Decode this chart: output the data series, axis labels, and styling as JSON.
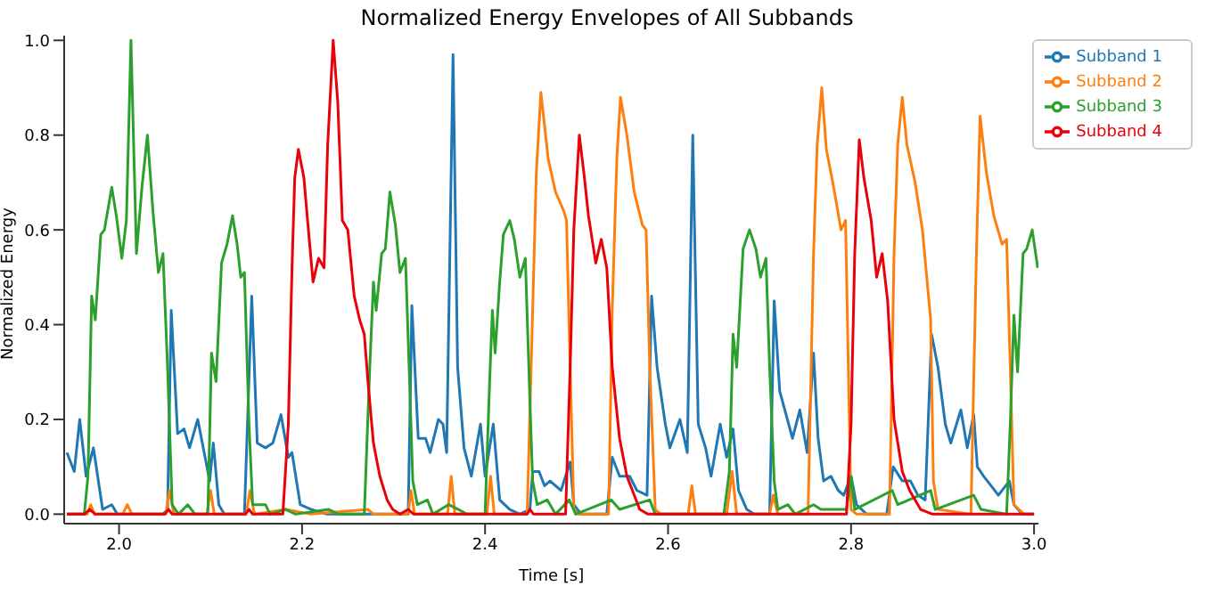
{
  "chart_data": {
    "type": "line",
    "title": "Normalized Energy Envelopes of All Subbands",
    "xlabel": "Time [s]",
    "ylabel": "Normalized Energy",
    "xlim": [
      1.94,
      3.005
    ],
    "ylim": [
      -0.02,
      1.01
    ],
    "xticks": [
      {
        "value": 2,
        "label": "2.0"
      },
      2.2,
      2.4,
      2.6,
      2.8,
      {
        "value": 3,
        "label": "3.0"
      }
    ],
    "yticks": [
      {
        "value": 0,
        "label": "0.0"
      },
      0.2,
      0.4,
      0.6,
      0.8,
      {
        "value": 1,
        "label": "1.0"
      }
    ],
    "grid": false,
    "legend": "top right",
    "marker": "none",
    "line_style": "solid",
    "series": [
      {
        "name": "Subband 1",
        "color": "#1f77b4",
        "x": [
          1.943,
          1.951,
          1.957,
          1.964,
          1.972,
          1.982,
          1.992,
          1.998,
          2.048,
          2.053,
          2.057,
          2.064,
          2.071,
          2.077,
          2.086,
          2.094,
          2.099,
          2.103,
          2.109,
          2.115,
          2.137,
          2.145,
          2.151,
          2.16,
          2.168,
          2.177,
          2.185,
          2.189,
          2.198,
          2.21,
          2.227,
          2.316,
          2.32,
          2.327,
          2.335,
          2.34,
          2.349,
          2.354,
          2.358,
          2.365,
          2.37,
          2.377,
          2.385,
          2.395,
          2.4,
          2.409,
          2.416,
          2.427,
          2.438,
          2.449,
          2.452,
          2.459,
          2.465,
          2.471,
          2.483,
          2.493,
          2.497,
          2.505,
          2.533,
          2.539,
          2.547,
          2.558,
          2.566,
          2.577,
          2.582,
          2.588,
          2.597,
          2.602,
          2.613,
          2.621,
          2.627,
          2.633,
          2.641,
          2.647,
          2.657,
          2.664,
          2.671,
          2.677,
          2.686,
          2.694,
          2.711,
          2.716,
          2.722,
          2.729,
          2.736,
          2.744,
          2.752,
          2.759,
          2.764,
          2.77,
          2.778,
          2.786,
          2.792,
          2.8,
          2.806,
          2.817,
          2.839,
          2.846,
          2.856,
          2.865,
          2.873,
          2.881,
          2.888,
          2.895,
          2.903,
          2.909,
          2.92,
          2.927,
          2.934,
          2.938,
          2.945,
          2.953,
          2.961,
          2.973,
          2.978,
          2.987,
          3.0
        ],
        "values": [
          0.13,
          0.09,
          0.2,
          0.08,
          0.14,
          0.01,
          0.02,
          0,
          0,
          0.01,
          0.43,
          0.17,
          0.18,
          0.14,
          0.2,
          0.12,
          0.07,
          0.15,
          0.02,
          0,
          0,
          0.46,
          0.15,
          0.14,
          0.15,
          0.21,
          0.12,
          0.13,
          0.02,
          0.01,
          0,
          0,
          0.44,
          0.16,
          0.16,
          0.13,
          0.2,
          0.19,
          0.13,
          0.97,
          0.31,
          0.14,
          0.08,
          0.19,
          0.08,
          0.19,
          0.03,
          0.01,
          0,
          0.01,
          0.09,
          0.09,
          0.06,
          0.07,
          0.05,
          0.11,
          0.02,
          0,
          0,
          0.12,
          0.08,
          0.08,
          0.05,
          0.04,
          0.46,
          0.31,
          0.19,
          0.14,
          0.2,
          0.13,
          0.8,
          0.19,
          0.14,
          0.08,
          0.19,
          0.12,
          0.18,
          0.05,
          0.01,
          0,
          0,
          0.45,
          0.26,
          0.21,
          0.16,
          0.22,
          0.13,
          0.34,
          0.16,
          0.07,
          0.08,
          0.05,
          0.04,
          0.08,
          0.02,
          0,
          0,
          0.1,
          0.07,
          0.07,
          0.04,
          0.03,
          0.38,
          0.31,
          0.19,
          0.15,
          0.22,
          0.14,
          0.21,
          0.1,
          0.08,
          0.06,
          0.04,
          0.07,
          0.02,
          0,
          0
        ]
      },
      {
        "name": "Subband 2",
        "color": "#ff7f0e",
        "x": [
          1.943,
          1.965,
          1.969,
          1.973,
          2.004,
          2.009,
          2.014,
          2.051,
          2.055,
          2.06,
          2.096,
          2.1,
          2.104,
          2.139,
          2.143,
          2.148,
          2.182,
          2.21,
          2.272,
          2.278,
          2.316,
          2.319,
          2.323,
          2.359,
          2.363,
          2.367,
          2.402,
          2.406,
          2.41,
          2.446,
          2.452,
          2.456,
          2.461,
          2.469,
          2.477,
          2.486,
          2.489,
          2.493,
          2.497,
          2.502,
          2.535,
          2.539,
          2.544,
          2.548,
          2.555,
          2.563,
          2.572,
          2.576,
          2.58,
          2.586,
          2.592,
          2.622,
          2.626,
          2.63,
          2.664,
          2.67,
          2.675,
          2.711,
          2.715,
          2.72,
          2.753,
          2.759,
          2.763,
          2.768,
          2.773,
          2.781,
          2.789,
          2.794,
          2.797,
          2.8,
          2.806,
          2.842,
          2.847,
          2.851,
          2.856,
          2.861,
          2.87,
          2.878,
          2.887,
          2.89,
          2.895,
          2.931,
          2.937,
          2.941,
          2.948,
          2.956,
          2.965,
          2.97,
          2.974,
          2.978,
          2.989,
          3.0
        ],
        "values": [
          0,
          0,
          0.02,
          0,
          0,
          0.02,
          0,
          0,
          0.05,
          0,
          0,
          0.05,
          0,
          0,
          0.05,
          0,
          0.01,
          0,
          0.01,
          0,
          0,
          0.05,
          0,
          0,
          0.08,
          0,
          0,
          0.08,
          0,
          0,
          0.43,
          0.72,
          0.89,
          0.75,
          0.68,
          0.64,
          0.62,
          0.31,
          0.01,
          0,
          0,
          0.43,
          0.75,
          0.88,
          0.8,
          0.68,
          0.61,
          0.6,
          0.31,
          0.01,
          0,
          0,
          0.06,
          0,
          0,
          0.09,
          0,
          0,
          0.04,
          0,
          0,
          0.55,
          0.78,
          0.9,
          0.77,
          0.69,
          0.6,
          0.62,
          0.31,
          0.01,
          0,
          0,
          0.55,
          0.78,
          0.88,
          0.78,
          0.7,
          0.6,
          0.41,
          0.07,
          0.01,
          0,
          0.55,
          0.84,
          0.72,
          0.63,
          0.57,
          0.58,
          0.31,
          0.02,
          0,
          0
        ]
      },
      {
        "name": "Subband 3",
        "color": "#2ca02c",
        "x": [
          1.943,
          1.962,
          1.966,
          1.97,
          1.974,
          1.98,
          1.984,
          1.992,
          1.997,
          2.003,
          2.008,
          2.013,
          2.019,
          2.025,
          2.031,
          2.037,
          2.043,
          2.048,
          2.053,
          2.058,
          2.065,
          2.075,
          2.083,
          2.097,
          2.101,
          2.106,
          2.112,
          2.118,
          2.124,
          2.129,
          2.133,
          2.137,
          2.142,
          2.146,
          2.16,
          2.165,
          2.182,
          2.193,
          2.229,
          2.24,
          2.268,
          2.274,
          2.278,
          2.281,
          2.287,
          2.291,
          2.296,
          2.302,
          2.307,
          2.313,
          2.317,
          2.321,
          2.326,
          2.337,
          2.343,
          2.36,
          2.371,
          2.38,
          2.4,
          2.405,
          2.408,
          2.411,
          2.416,
          2.42,
          2.427,
          2.432,
          2.438,
          2.444,
          2.449,
          2.452,
          2.457,
          2.468,
          2.477,
          2.492,
          2.499,
          2.538,
          2.547,
          2.58,
          2.586,
          2.661,
          2.667,
          2.671,
          2.675,
          2.682,
          2.689,
          2.696,
          2.701,
          2.707,
          2.711,
          2.716,
          2.72,
          2.731,
          2.739,
          2.759,
          2.767,
          2.795,
          2.8,
          2.804,
          2.845,
          2.851,
          2.887,
          2.892,
          2.934,
          2.942,
          2.97,
          2.974,
          2.978,
          2.982,
          2.988,
          2.992,
          2.998,
          3.004
        ],
        "values": [
          0,
          0,
          0.08,
          0.46,
          0.41,
          0.59,
          0.6,
          0.69,
          0.63,
          0.54,
          0.62,
          1.0,
          0.55,
          0.69,
          0.8,
          0.64,
          0.51,
          0.55,
          0.31,
          0.02,
          0,
          0.02,
          0,
          0,
          0.34,
          0.28,
          0.53,
          0.57,
          0.63,
          0.57,
          0.5,
          0.51,
          0.19,
          0.02,
          0.02,
          0,
          0.01,
          0,
          0.01,
          0,
          0,
          0.31,
          0.49,
          0.43,
          0.55,
          0.56,
          0.68,
          0.61,
          0.51,
          0.54,
          0.31,
          0.07,
          0.02,
          0.03,
          0,
          0.02,
          0.01,
          0,
          0,
          0.28,
          0.43,
          0.34,
          0.49,
          0.59,
          0.62,
          0.58,
          0.5,
          0.54,
          0.24,
          0.07,
          0.02,
          0.03,
          0,
          0.03,
          0,
          0.03,
          0.01,
          0.03,
          0,
          0,
          0.09,
          0.38,
          0.31,
          0.56,
          0.6,
          0.56,
          0.5,
          0.54,
          0.31,
          0.07,
          0.01,
          0.02,
          0,
          0.02,
          0.01,
          0.01,
          0.08,
          0.01,
          0.05,
          0.02,
          0.05,
          0.01,
          0.04,
          0.01,
          0,
          0.19,
          0.42,
          0.3,
          0.55,
          0.56,
          0.6,
          0.52
        ]
      },
      {
        "name": "Subband 4",
        "color": "#e8000b",
        "x": [
          1.943,
          1.962,
          1.968,
          1.974,
          2.05,
          2.054,
          2.058,
          2.138,
          2.142,
          2.146,
          2.179,
          2.185,
          2.189,
          2.192,
          2.196,
          2.202,
          2.206,
          2.212,
          2.218,
          2.224,
          2.228,
          2.234,
          2.239,
          2.244,
          2.25,
          2.257,
          2.263,
          2.268,
          2.272,
          2.278,
          2.285,
          2.293,
          2.299,
          2.307,
          2.316,
          2.322,
          2.446,
          2.449,
          2.453,
          2.488,
          2.493,
          2.497,
          2.503,
          2.508,
          2.513,
          2.521,
          2.527,
          2.533,
          2.539,
          2.547,
          2.555,
          2.563,
          2.569,
          2.578,
          2.795,
          2.8,
          2.804,
          2.809,
          2.814,
          2.822,
          2.828,
          2.834,
          2.84,
          2.847,
          2.856,
          2.864,
          2.876,
          2.889,
          3.0
        ],
        "values": [
          0,
          0,
          0.01,
          0,
          0,
          0.01,
          0,
          0,
          0.01,
          0,
          0,
          0.19,
          0.52,
          0.71,
          0.77,
          0.71,
          0.62,
          0.49,
          0.54,
          0.52,
          0.78,
          1.0,
          0.87,
          0.62,
          0.6,
          0.46,
          0.41,
          0.38,
          0.28,
          0.15,
          0.08,
          0.03,
          0.01,
          0,
          0.01,
          0,
          0,
          0.01,
          0,
          0,
          0.31,
          0.6,
          0.8,
          0.72,
          0.63,
          0.53,
          0.58,
          0.52,
          0.31,
          0.16,
          0.08,
          0.04,
          0.01,
          0,
          0,
          0.19,
          0.55,
          0.79,
          0.71,
          0.62,
          0.5,
          0.55,
          0.45,
          0.2,
          0.09,
          0.05,
          0.01,
          0,
          0
        ]
      }
    ]
  }
}
